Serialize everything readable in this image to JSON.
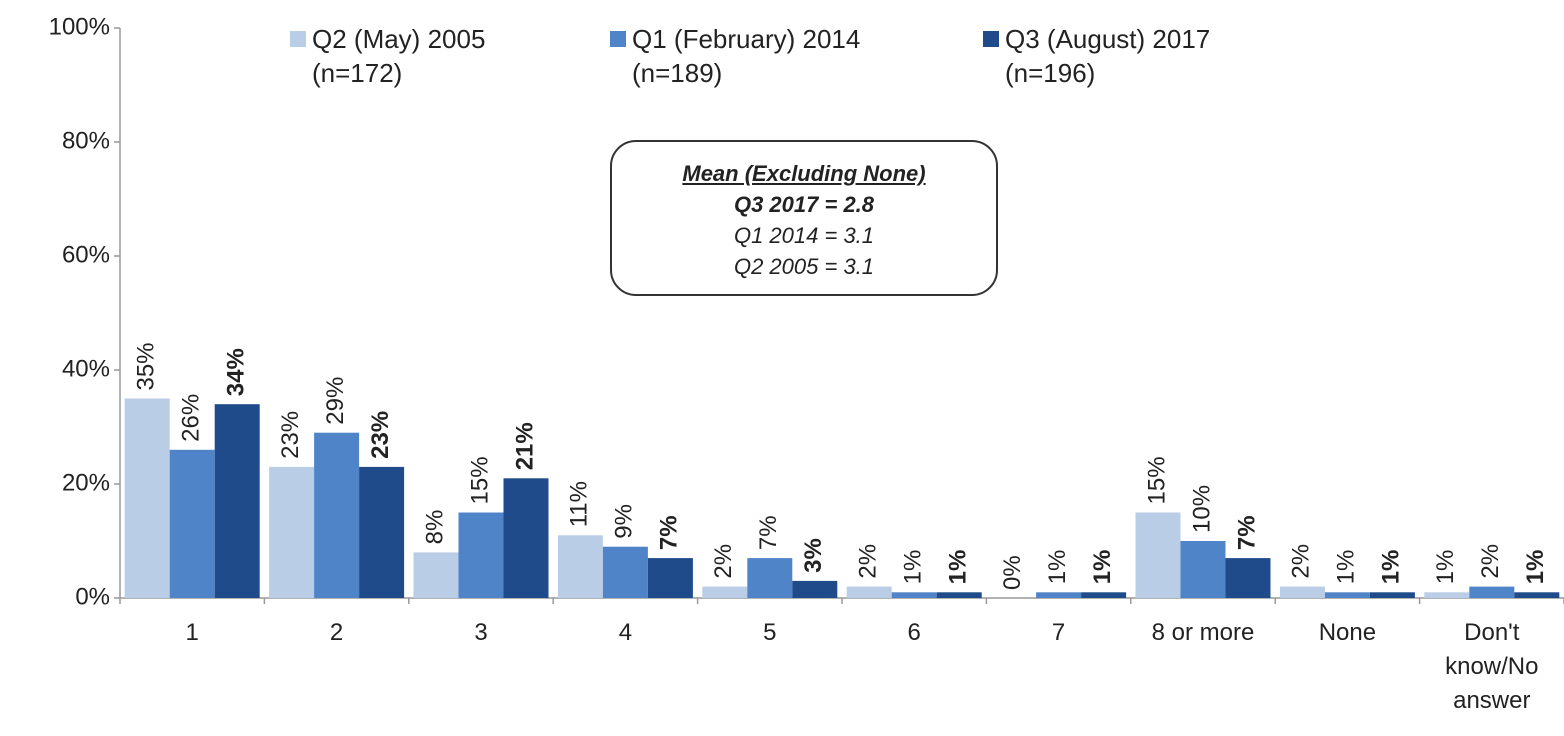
{
  "chart_data": {
    "type": "bar",
    "categories": [
      "1",
      "2",
      "3",
      "4",
      "5",
      "6",
      "7",
      "8 or more",
      "None",
      "Don't know/No answer"
    ],
    "series": [
      {
        "name": "Q2 (May) 2005 (n=172)",
        "color": "#b9cde6",
        "values": [
          35,
          23,
          8,
          11,
          2,
          2,
          0,
          15,
          2,
          1
        ],
        "value_labels": [
          "35%",
          "23%",
          "8%",
          "11%",
          "2%",
          "2%",
          "0%",
          "15%",
          "2%",
          "1%"
        ]
      },
      {
        "name": "Q1 (February) 2014 (n=189)",
        "color": "#4f84c9",
        "values": [
          26,
          29,
          15,
          9,
          7,
          1,
          1,
          10,
          1,
          2
        ],
        "value_labels": [
          "26%",
          "29%",
          "15%",
          "9%",
          "7%",
          "1%",
          "1%",
          "10%",
          "1%",
          "2%"
        ]
      },
      {
        "name": "Q3 (August) 2017 (n=196)",
        "color": "#1f4b8a",
        "value_label_weight": "bold",
        "values": [
          34,
          23,
          21,
          7,
          3,
          1,
          1,
          7,
          1,
          1
        ],
        "value_labels": [
          "34%",
          "23%",
          "21%",
          "7%",
          "3%",
          "1%",
          "1%",
          "7%",
          "1%",
          "1%"
        ]
      }
    ],
    "ylim": [
      0,
      100
    ],
    "yticks": [
      {
        "value": 0,
        "label": "0%"
      },
      {
        "value": 20,
        "label": "20%"
      },
      {
        "value": 40,
        "label": "40%"
      },
      {
        "value": 60,
        "label": "60%"
      },
      {
        "value": 80,
        "label": "80%"
      },
      {
        "value": 100,
        "label": "100%"
      }
    ],
    "grid": false,
    "legend": "top",
    "annotations": [
      "Mean (Excluding None)",
      "Q3 2017 = 2.8",
      "Q1 2014 = 3.1",
      "Q2 2005 = 3.1"
    ]
  }
}
